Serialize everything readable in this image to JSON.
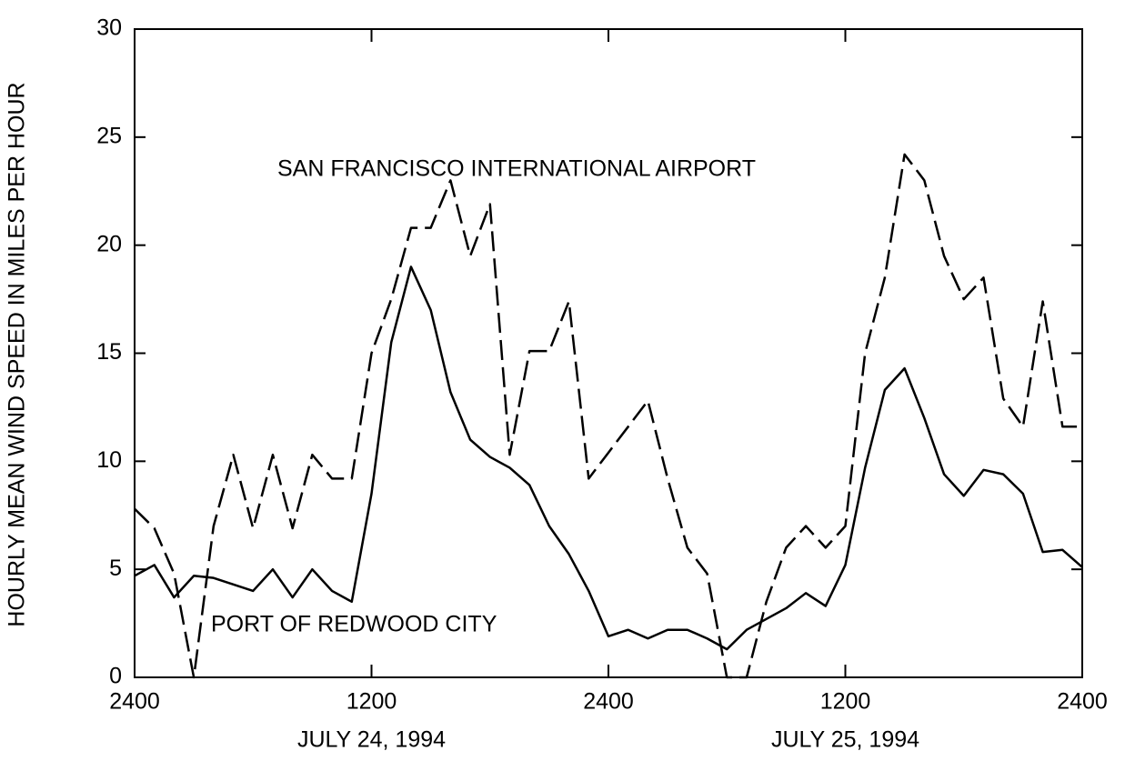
{
  "chart_data": {
    "type": "line",
    "y_label": "HOURLY MEAN WIND SPEED IN MILES PER HOUR",
    "x": [
      0,
      1,
      2,
      3,
      4,
      5,
      6,
      7,
      8,
      9,
      10,
      11,
      12,
      13,
      14,
      15,
      16,
      17,
      18,
      19,
      20,
      21,
      22,
      23,
      24,
      25,
      26,
      27,
      28,
      29,
      30,
      31,
      32,
      33,
      34,
      35,
      36,
      37,
      38,
      39,
      40,
      41,
      42,
      43,
      44,
      45,
      46,
      47,
      48
    ],
    "series": [
      {
        "name": "SAN FRANCISCO INTERNATIONAL AIRPORT",
        "color": "#000000",
        "line_style": "dashed",
        "values": [
          7.8,
          6.9,
          4.8,
          0,
          7.0,
          10.3,
          6.9,
          10.3,
          6.9,
          10.3,
          9.2,
          9.2,
          15.0,
          17.5,
          20.8,
          20.8,
          23.0,
          19.5,
          21.9,
          10.3,
          15.1,
          15.1,
          17.4,
          9.2,
          10.4,
          11.6,
          12.8,
          9.2,
          6.0,
          4.8,
          0,
          0,
          3.5,
          6.0,
          7.0,
          6.0,
          7.0,
          15.0,
          18.5,
          24.2,
          23.0,
          19.5,
          17.5,
          18.5,
          12.9,
          11.6,
          17.4,
          11.6,
          11.6
        ]
      },
      {
        "name": "PORT OF REDWOOD CITY",
        "color": "#000000",
        "line_style": "solid",
        "values": [
          4.7,
          5.2,
          3.7,
          4.7,
          4.6,
          4.3,
          4.0,
          5.0,
          3.7,
          5.0,
          4.0,
          3.5,
          8.5,
          15.5,
          19.0,
          17.0,
          13.2,
          11.0,
          10.2,
          9.7,
          8.9,
          7.0,
          5.7,
          4.0,
          1.9,
          2.2,
          1.8,
          2.2,
          2.2,
          1.8,
          1.3,
          2.2,
          2.7,
          3.2,
          3.9,
          3.3,
          5.2,
          9.7,
          13.3,
          14.3,
          12.0,
          9.4,
          8.4,
          9.6,
          9.4,
          8.5,
          5.8,
          5.9,
          5.1
        ]
      }
    ],
    "xlim": [
      0,
      48
    ],
    "xticks": [
      {
        "value": 0,
        "label": "2400"
      },
      {
        "value": 12,
        "label": "1200"
      },
      {
        "value": 24,
        "label": "2400"
      },
      {
        "value": 36,
        "label": "1200"
      },
      {
        "value": 48,
        "label": "2400"
      }
    ],
    "ylim": [
      0,
      30
    ],
    "yticks": [
      0,
      5,
      10,
      15,
      20,
      25,
      30
    ],
    "annotations": [
      {
        "text": "JULY 24, 1994",
        "x": 12
      },
      {
        "text": "JULY 25, 1994",
        "x": 36
      }
    ],
    "grid": false
  }
}
